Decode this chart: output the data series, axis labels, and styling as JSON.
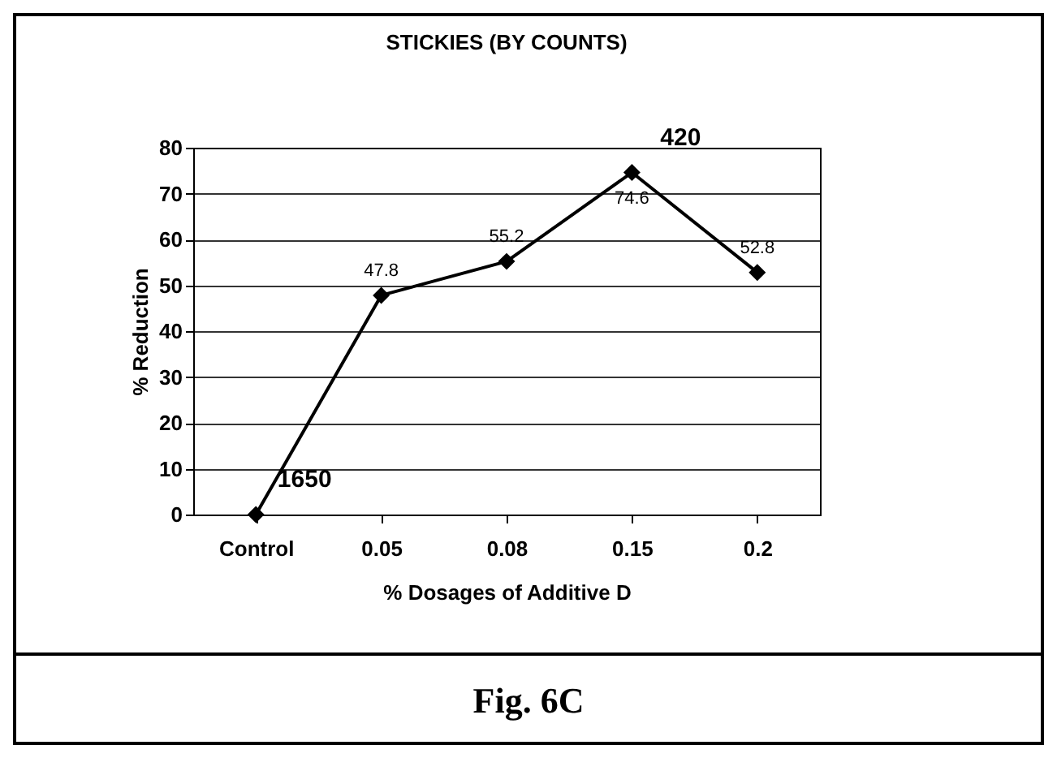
{
  "chart_data": {
    "type": "line",
    "title": "STICKIES (BY COUNTS)",
    "xlabel": "% Dosages of Additive D",
    "ylabel": "% Reduction",
    "categories": [
      "Control",
      "0.05",
      "0.08",
      "0.15",
      "0.2"
    ],
    "series": [
      {
        "color": "#000000",
        "values": [
          0,
          47.8,
          55.2,
          74.6,
          52.8
        ],
        "value_labels": [
          null,
          "47.8",
          "55.2",
          "74.6",
          "52.8"
        ]
      }
    ],
    "ylim": [
      0,
      80
    ],
    "yticks": [
      0,
      10,
      20,
      30,
      40,
      50,
      60,
      70,
      80
    ],
    "grid": "y",
    "marker": "diamond",
    "line_style": "solid",
    "legend": false,
    "annotations": [
      {
        "text": "1650",
        "x": "Control",
        "y": 0
      },
      {
        "text": "420",
        "x": "0.15",
        "y": 74.6
      },
      "Fig. 6C"
    ]
  }
}
